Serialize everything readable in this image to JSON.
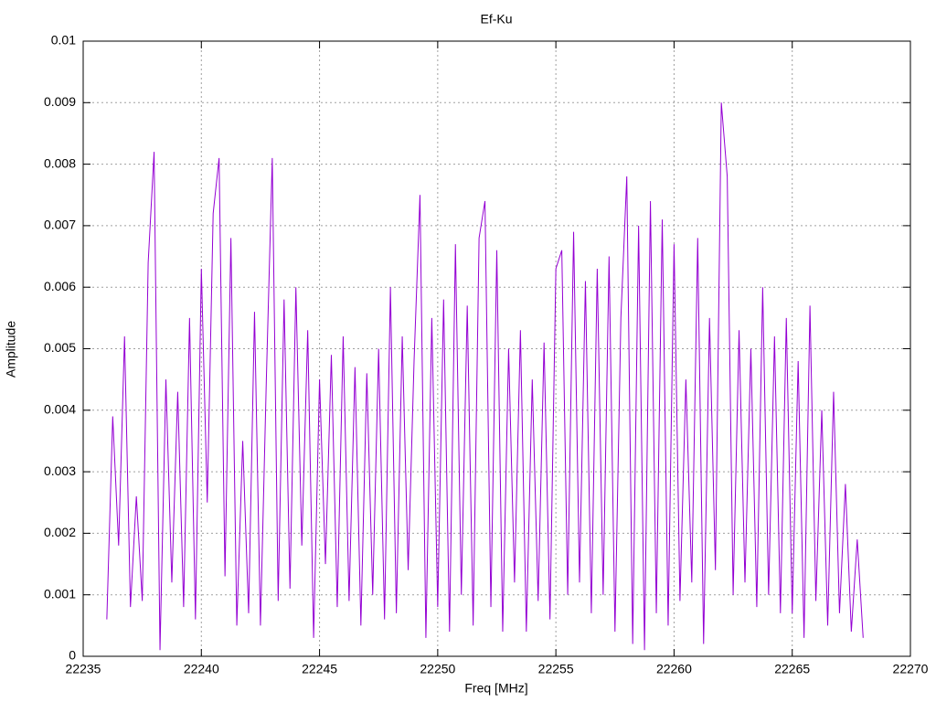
{
  "chart_data": {
    "type": "line",
    "title": "Ef-Ku",
    "xlabel": "Freq [MHz]",
    "ylabel": "Amplitude",
    "color": "#9400d3",
    "grid": true,
    "xlim": [
      22235,
      22270
    ],
    "xticks": [
      22235,
      22240,
      22245,
      22250,
      22255,
      22260,
      22265,
      22270
    ],
    "ylim": [
      0,
      0.01
    ],
    "yticks": [
      0,
      0.001,
      0.002,
      0.003,
      0.004,
      0.005,
      0.006,
      0.007,
      0.008,
      0.009,
      0.01
    ],
    "x": [
      22236,
      22236.25,
      22236.5,
      22236.75,
      22237,
      22237.25,
      22237.5,
      22237.75,
      22238,
      22238.25,
      22238.5,
      22238.75,
      22239,
      22239.25,
      22239.5,
      22239.75,
      22240,
      22240.25,
      22240.5,
      22240.75,
      22241,
      22241.25,
      22241.5,
      22241.75,
      22242,
      22242.25,
      22242.5,
      22242.75,
      22243,
      22243.25,
      22243.5,
      22243.75,
      22244,
      22244.25,
      22244.5,
      22244.75,
      22245,
      22245.25,
      22245.5,
      22245.75,
      22246,
      22246.25,
      22246.5,
      22246.75,
      22247,
      22247.25,
      22247.5,
      22247.75,
      22248,
      22248.25,
      22248.5,
      22248.75,
      22249,
      22249.25,
      22249.5,
      22249.75,
      22250,
      22250.25,
      22250.5,
      22250.75,
      22251,
      22251.25,
      22251.5,
      22251.75,
      22252,
      22252.25,
      22252.5,
      22252.75,
      22253,
      22253.25,
      22253.5,
      22253.75,
      22254,
      22254.25,
      22254.5,
      22254.75,
      22255,
      22255.25,
      22255.5,
      22255.75,
      22256,
      22256.25,
      22256.5,
      22256.75,
      22257,
      22257.25,
      22257.5,
      22257.75,
      22258,
      22258.25,
      22258.5,
      22258.75,
      22259,
      22259.25,
      22259.5,
      22259.75,
      22260,
      22260.25,
      22260.5,
      22260.75,
      22261,
      22261.25,
      22261.5,
      22261.75,
      22262,
      22262.25,
      22262.5,
      22262.75,
      22263,
      22263.25,
      22263.5,
      22263.75,
      22264,
      22264.25,
      22264.5,
      22264.75,
      22265,
      22265.25,
      22265.5,
      22265.75,
      22266,
      22266.25,
      22266.5,
      22266.75,
      22267,
      22267.25,
      22267.5,
      22267.75,
      22268
    ],
    "values": [
      0.0006,
      0.0039,
      0.0018,
      0.0052,
      0.0008,
      0.0026,
      0.0009,
      0.0064,
      0.0082,
      0.0001,
      0.0045,
      0.0012,
      0.0043,
      0.0008,
      0.0055,
      0.0006,
      0.0063,
      0.0025,
      0.0072,
      0.0081,
      0.0013,
      0.0068,
      0.0005,
      0.0035,
      0.0007,
      0.0056,
      0.0005,
      0.0045,
      0.0081,
      0.0009,
      0.0058,
      0.0011,
      0.006,
      0.0018,
      0.0053,
      0.0003,
      0.0045,
      0.0015,
      0.0049,
      0.0008,
      0.0052,
      0.0009,
      0.0047,
      0.0005,
      0.0046,
      0.001,
      0.005,
      0.0006,
      0.006,
      0.0007,
      0.0052,
      0.0014,
      0.0048,
      0.0075,
      0.0003,
      0.0055,
      0.0008,
      0.0058,
      0.0004,
      0.0067,
      0.001,
      0.0057,
      0.0005,
      0.0068,
      0.0074,
      0.0008,
      0.0066,
      0.0004,
      0.005,
      0.0012,
      0.0053,
      0.0004,
      0.0045,
      0.0009,
      0.0051,
      0.0006,
      0.0063,
      0.0066,
      0.001,
      0.0069,
      0.0012,
      0.0061,
      0.0007,
      0.0063,
      0.001,
      0.0065,
      0.0004,
      0.0055,
      0.0078,
      0.0002,
      0.007,
      0.0001,
      0.0074,
      0.0007,
      0.0071,
      0.0005,
      0.0067,
      0.0009,
      0.0045,
      0.0012,
      0.0068,
      0.0002,
      0.0055,
      0.0014,
      0.009,
      0.0078,
      0.001,
      0.0053,
      0.0012,
      0.005,
      0.0008,
      0.006,
      0.001,
      0.0052,
      0.0007,
      0.0055,
      0.0007,
      0.0048,
      0.0003,
      0.0057,
      0.0009,
      0.004,
      0.0005,
      0.0043,
      0.0007,
      0.0028,
      0.0004,
      0.0019,
      0.0003
    ]
  }
}
